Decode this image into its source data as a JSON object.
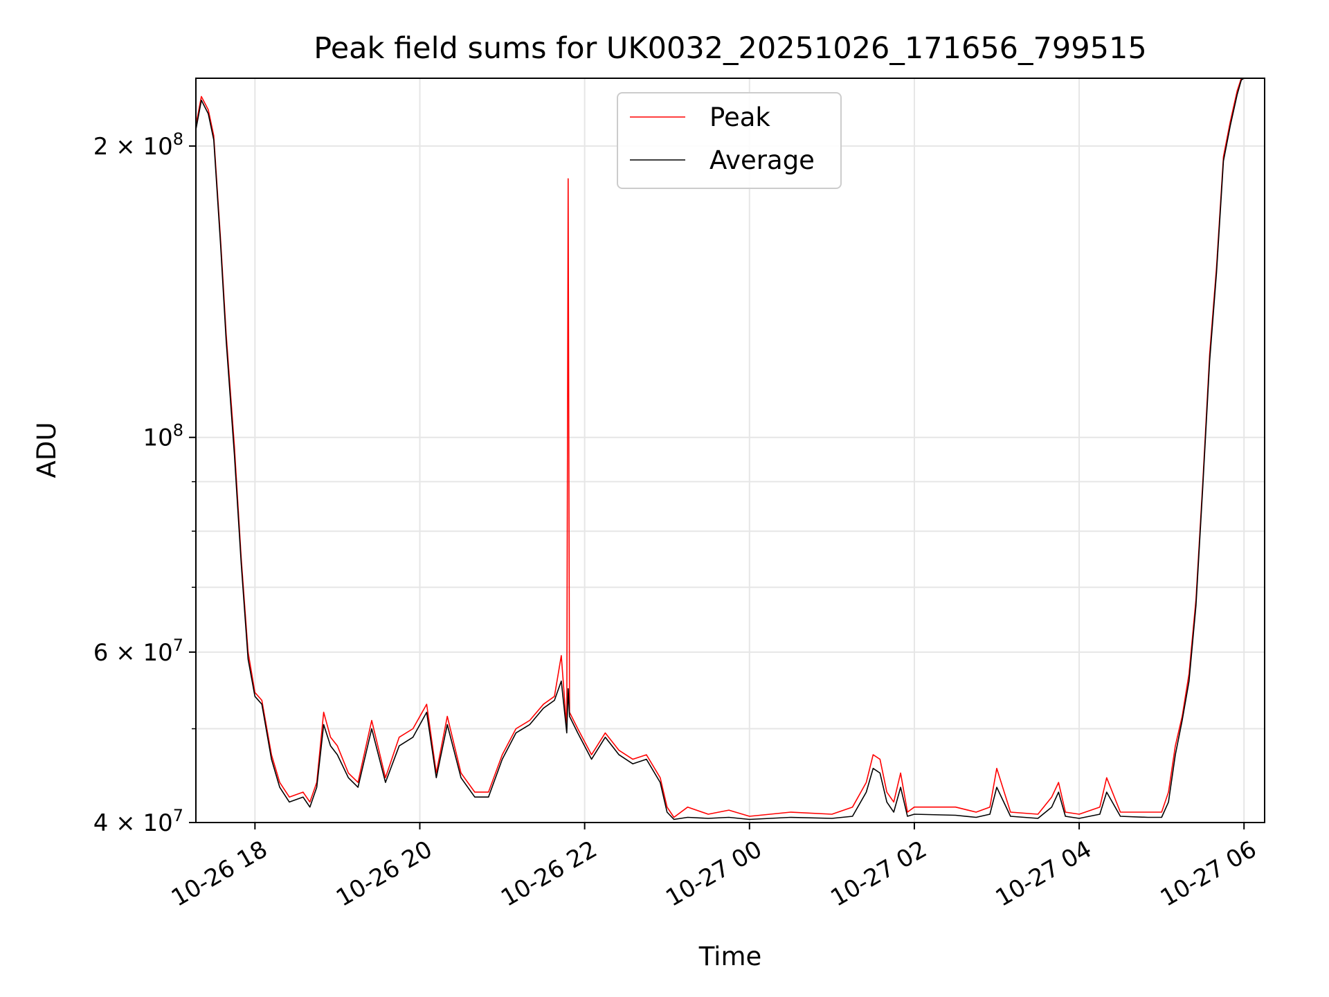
{
  "chart_data": {
    "type": "line",
    "title": "Peak field sums for UK0032_20251026_171656_799515",
    "xlabel": "Time",
    "ylabel": "ADU",
    "yscale": "log",
    "ylim": [
      40000000,
      235000000
    ],
    "xlim": [
      "2025-10-26 17:17",
      "2025-10-27 06:15"
    ],
    "grid": true,
    "legend": "upper center",
    "colors": {
      "Peak": "#ff0000",
      "Average": "#000000",
      "grid": "#e6e6e6"
    },
    "x_ticks": [
      {
        "t": "2025-10-26 18:00",
        "label": "10-26 18"
      },
      {
        "t": "2025-10-26 20:00",
        "label": "10-26 20"
      },
      {
        "t": "2025-10-26 22:00",
        "label": "10-26 22"
      },
      {
        "t": "2025-10-27 00:00",
        "label": "10-27 00"
      },
      {
        "t": "2025-10-27 02:00",
        "label": "10-27 02"
      },
      {
        "t": "2025-10-27 04:00",
        "label": "10-27 04"
      },
      {
        "t": "2025-10-27 06:00",
        "label": "10-27 06"
      }
    ],
    "y_ticks_major": [
      {
        "v": 40000000,
        "base": "4",
        "exp": "7"
      },
      {
        "v": 60000000,
        "base": "6",
        "exp": "7"
      },
      {
        "v": 100000000,
        "base": "",
        "exp": "8"
      },
      {
        "v": 200000000,
        "base": "2",
        "exp": "8"
      }
    ],
    "y_ticks_minor": [
      50000000,
      70000000,
      80000000,
      90000000
    ],
    "series": [
      {
        "name": "Peak",
        "x": [
          "2025-10-26 17:17",
          "2025-10-26 17:21",
          "2025-10-26 17:26",
          "2025-10-26 17:30",
          "2025-10-26 17:35",
          "2025-10-26 17:39",
          "2025-10-26 17:45",
          "2025-10-26 17:50",
          "2025-10-26 17:55",
          "2025-10-26 18:00",
          "2025-10-26 18:05",
          "2025-10-26 18:12",
          "2025-10-26 18:18",
          "2025-10-26 18:25",
          "2025-10-26 18:35",
          "2025-10-26 18:40",
          "2025-10-26 18:45",
          "2025-10-26 18:50",
          "2025-10-26 18:55",
          "2025-10-26 19:00",
          "2025-10-26 19:08",
          "2025-10-26 19:15",
          "2025-10-26 19:25",
          "2025-10-26 19:35",
          "2025-10-26 19:45",
          "2025-10-26 19:55",
          "2025-10-26 20:05",
          "2025-10-26 20:12",
          "2025-10-26 20:20",
          "2025-10-26 20:30",
          "2025-10-26 20:40",
          "2025-10-26 20:50",
          "2025-10-26 21:00",
          "2025-10-26 21:10",
          "2025-10-26 21:20",
          "2025-10-26 21:30",
          "2025-10-26 21:38",
          "2025-10-26 21:43",
          "2025-10-26 21:47",
          "2025-10-26 21:48",
          "2025-10-26 21:49",
          "2025-10-26 21:55",
          "2025-10-26 22:05",
          "2025-10-26 22:15",
          "2025-10-26 22:25",
          "2025-10-26 22:35",
          "2025-10-26 22:45",
          "2025-10-26 22:55",
          "2025-10-26 23:00",
          "2025-10-26 23:05",
          "2025-10-26 23:15",
          "2025-10-26 23:30",
          "2025-10-26 23:45",
          "2025-10-27 00:00",
          "2025-10-27 00:30",
          "2025-10-27 01:00",
          "2025-10-27 01:15",
          "2025-10-27 01:25",
          "2025-10-27 01:30",
          "2025-10-27 01:35",
          "2025-10-27 01:40",
          "2025-10-27 01:45",
          "2025-10-27 01:50",
          "2025-10-27 01:55",
          "2025-10-27 02:00",
          "2025-10-27 02:30",
          "2025-10-27 02:45",
          "2025-10-27 02:55",
          "2025-10-27 03:00",
          "2025-10-27 03:10",
          "2025-10-27 03:30",
          "2025-10-27 03:40",
          "2025-10-27 03:45",
          "2025-10-27 03:50",
          "2025-10-27 04:00",
          "2025-10-27 04:15",
          "2025-10-27 04:20",
          "2025-10-27 04:30",
          "2025-10-27 04:50",
          "2025-10-27 05:00",
          "2025-10-27 05:05",
          "2025-10-27 05:10",
          "2025-10-27 05:15",
          "2025-10-27 05:20",
          "2025-10-27 05:25",
          "2025-10-27 05:30",
          "2025-10-27 05:35",
          "2025-10-27 05:40",
          "2025-10-27 05:45",
          "2025-10-27 05:50",
          "2025-10-27 05:55",
          "2025-10-27 05:58",
          "2025-10-27 06:00",
          "2025-10-27 06:03"
        ],
        "values": [
          210000000,
          225000000,
          218000000,
          205000000,
          160000000,
          128000000,
          98000000,
          75000000,
          60000000,
          54500000,
          53500000,
          47000000,
          44000000,
          42500000,
          43000000,
          42000000,
          44000000,
          52000000,
          49000000,
          48000000,
          45000000,
          44000000,
          51000000,
          44500000,
          49000000,
          50000000,
          53000000,
          45000000,
          51500000,
          45000000,
          43000000,
          43000000,
          47000000,
          50000000,
          51000000,
          53000000,
          54000000,
          59500000,
          50000000,
          185000000,
          52000000,
          50000000,
          47000000,
          49500000,
          47500000,
          46500000,
          47000000,
          44500000,
          41500000,
          40500000,
          41500000,
          40800000,
          41200000,
          40600000,
          41000000,
          40800000,
          41500000,
          44000000,
          47000000,
          46500000,
          43000000,
          42000000,
          45000000,
          41000000,
          41500000,
          41500000,
          41000000,
          41500000,
          45500000,
          41000000,
          40800000,
          42500000,
          44000000,
          41000000,
          40800000,
          41500000,
          44500000,
          41000000,
          41000000,
          41000000,
          43000000,
          48000000,
          51500000,
          57000000,
          68000000,
          90000000,
          122000000,
          150000000,
          195000000,
          212000000,
          228000000,
          235000000,
          235000000,
          235000000
        ]
      },
      {
        "name": "Average",
        "x": [
          "2025-10-26 17:17",
          "2025-10-26 17:21",
          "2025-10-26 17:26",
          "2025-10-26 17:30",
          "2025-10-26 17:35",
          "2025-10-26 17:39",
          "2025-10-26 17:45",
          "2025-10-26 17:50",
          "2025-10-26 17:55",
          "2025-10-26 18:00",
          "2025-10-26 18:05",
          "2025-10-26 18:12",
          "2025-10-26 18:18",
          "2025-10-26 18:25",
          "2025-10-26 18:35",
          "2025-10-26 18:40",
          "2025-10-26 18:45",
          "2025-10-26 18:50",
          "2025-10-26 18:55",
          "2025-10-26 19:00",
          "2025-10-26 19:08",
          "2025-10-26 19:15",
          "2025-10-26 19:25",
          "2025-10-26 19:35",
          "2025-10-26 19:45",
          "2025-10-26 19:55",
          "2025-10-26 20:05",
          "2025-10-26 20:12",
          "2025-10-26 20:20",
          "2025-10-26 20:30",
          "2025-10-26 20:40",
          "2025-10-26 20:50",
          "2025-10-26 21:00",
          "2025-10-26 21:10",
          "2025-10-26 21:20",
          "2025-10-26 21:30",
          "2025-10-26 21:38",
          "2025-10-26 21:43",
          "2025-10-26 21:47",
          "2025-10-26 21:48",
          "2025-10-26 21:49",
          "2025-10-26 21:55",
          "2025-10-26 22:05",
          "2025-10-26 22:15",
          "2025-10-26 22:25",
          "2025-10-26 22:35",
          "2025-10-26 22:45",
          "2025-10-26 22:55",
          "2025-10-26 23:00",
          "2025-10-26 23:05",
          "2025-10-26 23:15",
          "2025-10-26 23:30",
          "2025-10-26 23:45",
          "2025-10-27 00:00",
          "2025-10-27 00:30",
          "2025-10-27 01:00",
          "2025-10-27 01:15",
          "2025-10-27 01:25",
          "2025-10-27 01:30",
          "2025-10-27 01:35",
          "2025-10-27 01:40",
          "2025-10-27 01:45",
          "2025-10-27 01:50",
          "2025-10-27 01:55",
          "2025-10-27 02:00",
          "2025-10-27 02:30",
          "2025-10-27 02:45",
          "2025-10-27 02:55",
          "2025-10-27 03:00",
          "2025-10-27 03:10",
          "2025-10-27 03:30",
          "2025-10-27 03:40",
          "2025-10-27 03:45",
          "2025-10-27 03:50",
          "2025-10-27 04:00",
          "2025-10-27 04:15",
          "2025-10-27 04:20",
          "2025-10-27 04:30",
          "2025-10-27 04:50",
          "2025-10-27 05:00",
          "2025-10-27 05:05",
          "2025-10-27 05:10",
          "2025-10-27 05:15",
          "2025-10-27 05:20",
          "2025-10-27 05:25",
          "2025-10-27 05:30",
          "2025-10-27 05:35",
          "2025-10-27 05:40",
          "2025-10-27 05:45",
          "2025-10-27 05:50",
          "2025-10-27 05:55",
          "2025-10-27 05:58",
          "2025-10-27 06:00",
          "2025-10-27 06:03"
        ],
        "values": [
          208000000,
          223000000,
          216000000,
          203000000,
          158000000,
          126000000,
          96000000,
          74000000,
          59000000,
          54000000,
          53000000,
          46500000,
          43500000,
          42000000,
          42500000,
          41500000,
          43500000,
          50500000,
          48000000,
          47000000,
          44500000,
          43500000,
          50000000,
          44000000,
          48000000,
          49000000,
          52000000,
          44500000,
          50500000,
          44500000,
          42500000,
          42500000,
          46500000,
          49500000,
          50500000,
          52500000,
          53500000,
          56000000,
          49500000,
          55000000,
          51500000,
          49500000,
          46500000,
          49000000,
          47000000,
          46000000,
          46500000,
          44000000,
          41000000,
          40300000,
          40500000,
          40400000,
          40500000,
          40300000,
          40500000,
          40400000,
          40600000,
          43000000,
          45500000,
          45000000,
          42000000,
          41000000,
          43500000,
          40600000,
          40800000,
          40700000,
          40500000,
          40800000,
          43500000,
          40600000,
          40400000,
          41500000,
          43000000,
          40600000,
          40400000,
          40800000,
          43000000,
          40600000,
          40500000,
          40500000,
          42000000,
          47000000,
          51000000,
          56000000,
          67000000,
          89000000,
          120000000,
          148000000,
          193000000,
          210000000,
          226000000,
          234000000,
          235000000,
          235000000
        ]
      }
    ]
  }
}
